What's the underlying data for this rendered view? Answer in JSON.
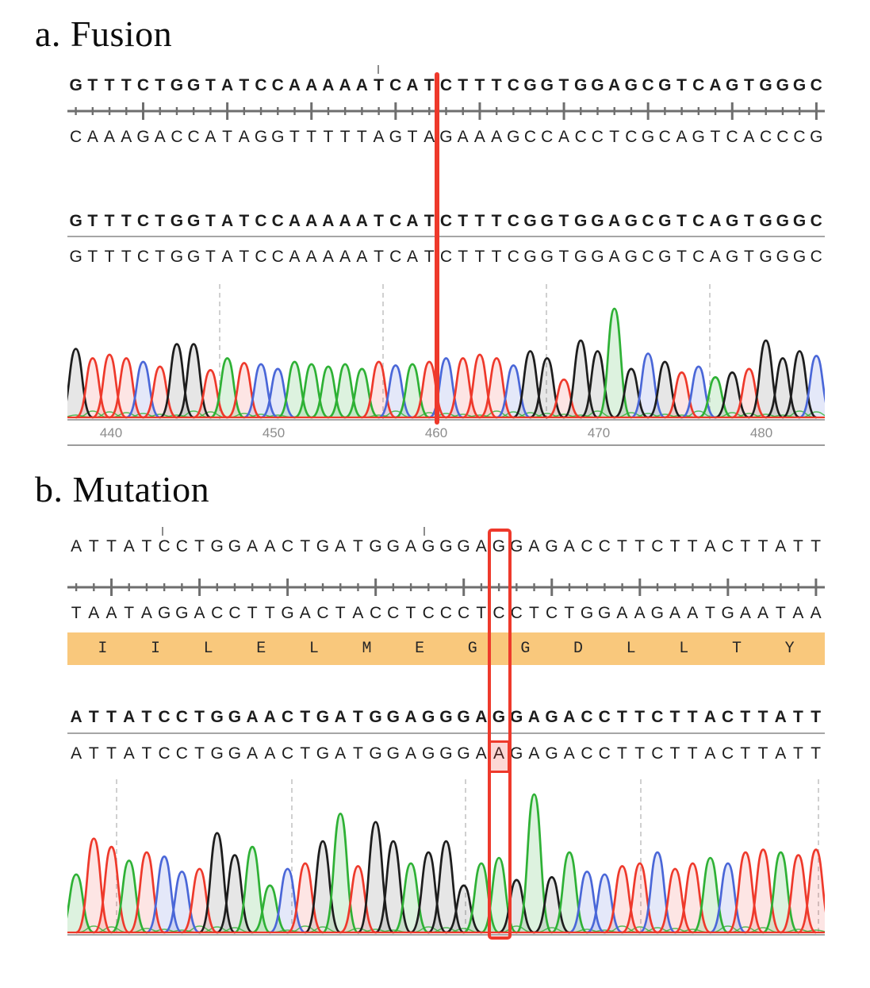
{
  "panel_a": {
    "label": "a. Fusion",
    "reference": "GTTTCTGGTATCCAAAAATCATCTTTCGGTGGAGCGTCAGTGGGC",
    "complement": "CAAAGACCATAGGTTTTTAGTAGAAAGCCACCTCGCAGTCACCCG",
    "aligned_reference": "GTTTCTGGTATCCAAAAATCATCTTTCGGTGGAGCGTCAGTGGGC",
    "called": "GTTTCTGGTATCCAAAAATCATCTTTCGGTGGAGCGTCAGTGGGC",
    "axis_labels": [
      "440",
      "450",
      "460",
      "470",
      "480"
    ],
    "breakpoint_after_base": 22
  },
  "panel_b": {
    "label": "b. Mutation",
    "reference": "ATTATCCTGGAACTGATGGAGGGAGGAGACCTTCTTACTTATT",
    "complement": "TAATAGGACCTTGACTACCTCCCTCCTCTGGAAGAATGAATAA",
    "aligned_reference": "ATTATCCTGGAACTGATGGAGGGAGGAGACCTTCTTACTTATT",
    "called": "ATTATCCTGGAACTGATGGAGGGAAGAGACCTTCTTACTTATT",
    "amino_acids": [
      "I",
      "I",
      "L",
      "E",
      "L",
      "M",
      "E",
      "G",
      "G",
      "D",
      "L",
      "L",
      "T",
      "Y"
    ],
    "mutation": {
      "index_1based": 25,
      "reference_base": "G",
      "called_base": "A"
    }
  },
  "colors": {
    "A": "#2eb135",
    "C": "#4a67d8",
    "G": "#1d1d1d",
    "T": "#ee392b",
    "marker_red": "#ee392b",
    "amino_band": "#f9c87c",
    "ruler_gray": "#6e6e6e",
    "axis_text_gray": "#8c8c8c",
    "gridline_gray": "#c4c4c4"
  },
  "chart_data": [
    {
      "type": "area",
      "name": "fusion_sanger_trace",
      "title": "a. Fusion",
      "x_tick_labels": [
        "440",
        "450",
        "460",
        "470",
        "480"
      ],
      "x_axis_range": [
        437,
        483
      ],
      "base_calls": "GTTTCTGGTATCCAAAAATCATCTTTCGGTGGAGCGTCAGTGGGC",
      "peak_heights_rel": [
        0.58,
        0.5,
        0.53,
        0.5,
        0.47,
        0.43,
        0.62,
        0.62,
        0.4,
        0.5,
        0.46,
        0.45,
        0.41,
        0.47,
        0.45,
        0.43,
        0.45,
        0.41,
        0.47,
        0.44,
        0.45,
        0.47,
        0.5,
        0.5,
        0.53,
        0.5,
        0.44,
        0.56,
        0.5,
        0.32,
        0.65,
        0.56,
        0.92,
        0.41,
        0.54,
        0.47,
        0.38,
        0.43,
        0.34,
        0.38,
        0.41,
        0.65,
        0.5,
        0.56,
        0.52
      ],
      "breakpoint_after_base": 22,
      "legend": {
        "A": "green",
        "C": "blue",
        "G": "black",
        "T": "red"
      },
      "grid": "dashed-vertical"
    },
    {
      "type": "area",
      "name": "mutation_sanger_trace",
      "title": "b. Mutation",
      "x_tick_labels": [],
      "base_calls": "ATTATCCTGGAACTGATGGAGGGAAGAGACCTTCTTACTTATT",
      "peak_heights_rel": [
        0.42,
        0.68,
        0.62,
        0.52,
        0.58,
        0.55,
        0.44,
        0.46,
        0.72,
        0.56,
        0.62,
        0.34,
        0.46,
        0.5,
        0.66,
        0.86,
        0.48,
        0.8,
        0.66,
        0.5,
        0.58,
        0.66,
        0.34,
        0.5,
        0.54,
        0.38,
        1.0,
        0.4,
        0.58,
        0.44,
        0.42,
        0.48,
        0.5,
        0.58,
        0.46,
        0.5,
        0.54,
        0.5,
        0.58,
        0.6,
        0.58,
        0.56,
        0.6
      ],
      "mutation": {
        "index_1based": 25,
        "reference_base": "G",
        "called_base": "A"
      },
      "legend": {
        "A": "green",
        "C": "blue",
        "G": "black",
        "T": "red"
      },
      "grid": "dashed-vertical"
    }
  ]
}
